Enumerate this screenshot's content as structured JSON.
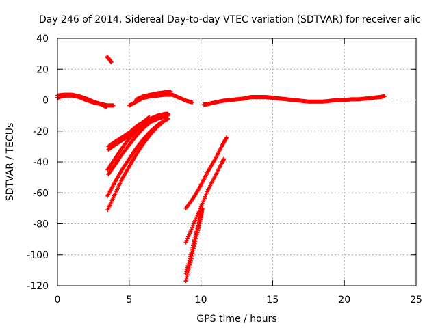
{
  "chart_data": {
    "type": "scatter",
    "title": "Day 246 of 2014, Sidereal Day-to-day VTEC variation (SDTVAR) for receiver alic",
    "xlabel": "GPS time / hours",
    "ylabel": "SDTVAR / TECUs",
    "xlim": [
      0,
      25
    ],
    "ylim": [
      -120,
      40
    ],
    "xticks": [
      0,
      5,
      10,
      15,
      20,
      25
    ],
    "yticks": [
      -120,
      -100,
      -80,
      -60,
      -40,
      -20,
      0,
      20,
      40
    ],
    "grid": true,
    "marker": "+",
    "color": "#ff0000",
    "series": [
      {
        "points": [
          [
            0.0,
            1.5
          ],
          [
            0.3,
            2.5
          ],
          [
            0.6,
            3.0
          ],
          [
            1.0,
            3.0
          ],
          [
            1.5,
            2.0
          ],
          [
            2.0,
            0.0
          ],
          [
            2.5,
            -1.5
          ],
          [
            3.0,
            -2.5
          ],
          [
            3.5,
            -3.5
          ],
          [
            3.9,
            -3.5
          ]
        ]
      },
      {
        "points": [
          [
            0.0,
            3.0
          ],
          [
            0.5,
            3.5
          ],
          [
            1.0,
            3.5
          ],
          [
            1.5,
            2.5
          ],
          [
            2.0,
            1.0
          ],
          [
            2.5,
            -1.0
          ],
          [
            3.0,
            -2.5
          ],
          [
            3.4,
            -4.5
          ]
        ]
      },
      {
        "points": [
          [
            3.45,
            28
          ],
          [
            3.6,
            26.5
          ],
          [
            3.75,
            24.5
          ]
        ]
      },
      {
        "points": [
          [
            5.0,
            -3.5
          ],
          [
            5.5,
            -1.0
          ],
          [
            6.0,
            1.5
          ],
          [
            6.5,
            2.5
          ],
          [
            7.0,
            3.0
          ],
          [
            7.5,
            3.5
          ],
          [
            8.0,
            3.5
          ],
          [
            8.5,
            1.5
          ],
          [
            9.0,
            -0.5
          ],
          [
            9.4,
            -1.5
          ]
        ]
      },
      {
        "points": [
          [
            5.5,
            0.5
          ],
          [
            6.0,
            2.5
          ],
          [
            6.5,
            3.5
          ],
          [
            7.0,
            4.5
          ],
          [
            7.5,
            5.0
          ],
          [
            7.9,
            5.5
          ]
        ]
      },
      {
        "points": [
          [
            3.55,
            -30
          ],
          [
            4.0,
            -27
          ],
          [
            4.5,
            -24
          ],
          [
            5.0,
            -21
          ],
          [
            5.5,
            -17
          ],
          [
            6.0,
            -14
          ],
          [
            6.4,
            -11
          ]
        ]
      },
      {
        "points": [
          [
            3.55,
            -32
          ],
          [
            4.0,
            -29
          ],
          [
            4.5,
            -26
          ],
          [
            5.0,
            -23
          ],
          [
            5.5,
            -19
          ],
          [
            6.0,
            -16
          ],
          [
            6.5,
            -13
          ],
          [
            7.0,
            -11
          ],
          [
            7.5,
            -10
          ],
          [
            7.7,
            -9.5
          ]
        ]
      },
      {
        "points": [
          [
            3.5,
            -45
          ],
          [
            4.0,
            -38
          ],
          [
            4.5,
            -31
          ],
          [
            5.0,
            -25
          ],
          [
            5.5,
            -20
          ],
          [
            6.0,
            -15
          ],
          [
            6.5,
            -12
          ],
          [
            7.0,
            -10
          ],
          [
            7.5,
            -9
          ],
          [
            7.7,
            -9
          ]
        ]
      },
      {
        "points": [
          [
            3.55,
            -48
          ],
          [
            4.0,
            -42
          ],
          [
            4.5,
            -35
          ],
          [
            5.0,
            -29
          ],
          [
            5.5,
            -23
          ],
          [
            6.0,
            -18
          ],
          [
            6.5,
            -14
          ],
          [
            7.0,
            -12
          ],
          [
            7.5,
            -10.5
          ],
          [
            7.7,
            -10
          ]
        ]
      },
      {
        "points": [
          [
            3.5,
            -62
          ],
          [
            4.0,
            -53
          ],
          [
            4.5,
            -45
          ],
          [
            5.0,
            -38
          ],
          [
            5.5,
            -31
          ],
          [
            6.0,
            -25
          ],
          [
            6.5,
            -20
          ],
          [
            7.0,
            -16
          ],
          [
            7.5,
            -13
          ],
          [
            7.7,
            -12
          ]
        ]
      },
      {
        "points": [
          [
            3.5,
            -71
          ],
          [
            4.0,
            -61
          ],
          [
            4.5,
            -51
          ],
          [
            5.0,
            -43
          ],
          [
            5.5,
            -35
          ],
          [
            6.0,
            -28
          ],
          [
            6.5,
            -22
          ],
          [
            7.0,
            -17
          ],
          [
            7.5,
            -13
          ],
          [
            7.7,
            -12
          ]
        ]
      },
      {
        "points": [
          [
            10.2,
            -3
          ],
          [
            10.5,
            -2.5
          ],
          [
            11.0,
            -1.5
          ],
          [
            11.5,
            -0.5
          ],
          [
            12.0,
            0.0
          ],
          [
            12.5,
            0.5
          ],
          [
            13.0,
            1.0
          ],
          [
            13.5,
            2.0
          ],
          [
            14.0,
            2.0
          ],
          [
            14.5,
            2.0
          ],
          [
            15.0,
            1.5
          ],
          [
            15.5,
            1.0
          ],
          [
            16.0,
            0.5
          ],
          [
            16.5,
            0.0
          ],
          [
            17.0,
            -0.5
          ],
          [
            17.5,
            -1.0
          ],
          [
            18.0,
            -1.0
          ],
          [
            18.5,
            -1.0
          ],
          [
            19.0,
            -0.5
          ],
          [
            19.5,
            0.0
          ],
          [
            20.0,
            0.0
          ],
          [
            20.5,
            0.5
          ],
          [
            21.0,
            0.5
          ],
          [
            21.5,
            1.0
          ],
          [
            22.0,
            1.5
          ],
          [
            22.5,
            2.0
          ],
          [
            22.8,
            2.5
          ]
        ]
      },
      {
        "points": [
          [
            8.95,
            -70
          ],
          [
            9.5,
            -63
          ],
          [
            10.0,
            -55
          ],
          [
            10.5,
            -46
          ],
          [
            11.0,
            -38
          ],
          [
            11.5,
            -29
          ],
          [
            11.8,
            -24
          ]
        ]
      },
      {
        "points": [
          [
            8.95,
            -92
          ],
          [
            9.5,
            -80
          ],
          [
            10.0,
            -69
          ],
          [
            10.5,
            -58
          ],
          [
            11.0,
            -49
          ],
          [
            11.5,
            -40
          ],
          [
            11.6,
            -38
          ]
        ]
      },
      {
        "points": [
          [
            8.95,
            -112
          ],
          [
            9.3,
            -100
          ],
          [
            9.6,
            -88
          ],
          [
            9.9,
            -78
          ],
          [
            10.0,
            -72
          ]
        ]
      },
      {
        "points": [
          [
            8.95,
            -117
          ],
          [
            9.3,
            -104
          ],
          [
            9.7,
            -88
          ],
          [
            10.0,
            -76
          ],
          [
            10.1,
            -70
          ]
        ]
      }
    ]
  }
}
